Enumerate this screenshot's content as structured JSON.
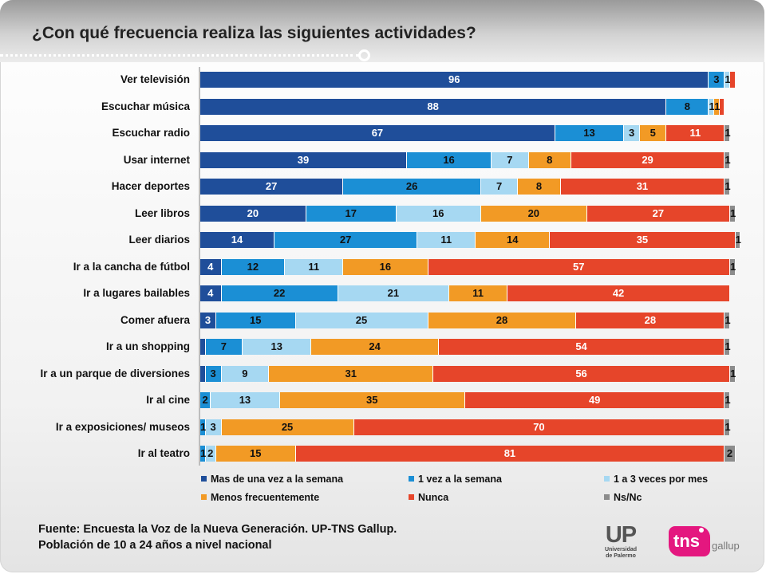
{
  "title": "¿Con qué frecuencia realiza las siguientes actividades?",
  "footer": {
    "line1": "Fuente: Encuesta la Voz de la Nueva Generación. UP-TNS Gallup.",
    "line2": "Población de 10 a 24 años a nivel nacional"
  },
  "logos": {
    "up_big": "UP",
    "up_small1": "Universidad",
    "up_small2": "de Palermo",
    "tns": "tns",
    "gallup": "gallup"
  },
  "chart_data": {
    "type": "bar",
    "orientation": "horizontal",
    "stacked": true,
    "xlim": [
      0,
      100
    ],
    "legend_position": "bottom",
    "categories": [
      "Ver televisión",
      "Escuchar música",
      "Escuchar radio",
      "Usar internet",
      "Hacer deportes",
      "Leer libros",
      "Leer diarios",
      "Ir a la cancha de fútbol",
      "Ir a lugares bailables",
      "Comer afuera",
      "Ir a un shopping",
      "Ir a un parque de diversiones",
      "Ir al cine",
      "Ir a exposiciones/ museos",
      "Ir al teatro"
    ],
    "series": [
      {
        "name": "Mas de una vez a la semana",
        "color": "#1f4e9a",
        "text_color": "#ffffff",
        "values": [
          96,
          88,
          67,
          39,
          27,
          20,
          14,
          4,
          4,
          3,
          1,
          1,
          0,
          0,
          0
        ],
        "labels": [
          "96",
          "88",
          "67",
          "39",
          "27",
          "20",
          "14",
          "4",
          "4",
          "3",
          "",
          "",
          "",
          "",
          ""
        ]
      },
      {
        "name": "1 vez a la semana",
        "color": "#1b8fd5",
        "text_color": "#111111",
        "values": [
          3,
          8,
          13,
          16,
          26,
          17,
          27,
          12,
          22,
          15,
          7,
          3,
          2,
          1,
          1
        ],
        "labels": [
          "3",
          "8",
          "13",
          "16",
          "26",
          "17",
          "27",
          "12",
          "22",
          "15",
          "7",
          "3",
          "2",
          "1",
          "1"
        ]
      },
      {
        "name": "1 a 3 veces por mes",
        "color": "#a6d8f2",
        "text_color": "#111111",
        "values": [
          1,
          1,
          3,
          7,
          7,
          16,
          11,
          11,
          21,
          25,
          13,
          9,
          13,
          3,
          2
        ],
        "labels": [
          "1",
          "1",
          "3",
          "7",
          "7",
          "16",
          "11",
          "11",
          "21",
          "25",
          "13",
          "9",
          "13",
          "3",
          "2"
        ]
      },
      {
        "name": "Menos frecuentemente",
        "color": "#f29a25",
        "text_color": "#111111",
        "values": [
          0,
          1,
          5,
          8,
          8,
          20,
          14,
          16,
          11,
          28,
          24,
          31,
          35,
          25,
          15
        ],
        "labels": [
          "",
          "1",
          "5",
          "8",
          "8",
          "20",
          "14",
          "16",
          "11",
          "28",
          "24",
          "31",
          "35",
          "25",
          "15"
        ]
      },
      {
        "name": "Nunca",
        "color": "#e6452a",
        "text_color": "#ffffff",
        "values": [
          1,
          1,
          11,
          29,
          31,
          27,
          35,
          57,
          42,
          28,
          54,
          56,
          49,
          70,
          81
        ],
        "labels": [
          "",
          "",
          "11",
          "29",
          "31",
          "27",
          "35",
          "57",
          "42",
          "28",
          "54",
          "56",
          "49",
          "70",
          "81"
        ]
      },
      {
        "name": "Ns/Nc",
        "color": "#8c8c8c",
        "text_color": "#111111",
        "values": [
          0,
          0,
          1,
          1,
          1,
          1,
          1,
          1,
          0,
          1,
          1,
          1,
          1,
          1,
          2
        ],
        "labels": [
          "",
          "",
          "1",
          "1",
          "1",
          "1",
          "1",
          "1",
          "",
          "1",
          "1",
          "1",
          "1",
          "1",
          "2"
        ]
      }
    ]
  }
}
